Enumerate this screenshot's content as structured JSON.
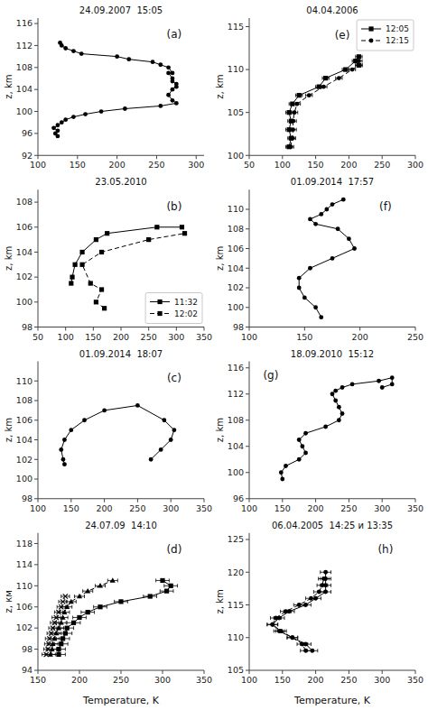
{
  "chart_data": [
    {
      "type": "line",
      "title": "24.09.2007  15:05",
      "annotation": "(a)",
      "ylabel": "z, km",
      "xlim": [
        100,
        310
      ],
      "xticks": [
        100,
        150,
        200,
        250,
        300
      ],
      "ylim": [
        92,
        117
      ],
      "yticks": [
        92,
        96,
        100,
        104,
        108,
        112,
        116
      ],
      "series": [
        {
          "x": [
            125,
            122,
            125,
            120,
            125,
            130,
            135,
            145,
            160,
            180,
            210,
            255,
            275,
            270,
            265,
            270,
            275,
            275,
            270,
            270,
            265,
            270,
            265,
            255,
            245,
            215,
            200,
            155,
            145,
            135,
            130,
            128
          ],
          "values": [
            95.5,
            96,
            96.5,
            97,
            97.5,
            98,
            98.5,
            99,
            99.5,
            100,
            100.5,
            101,
            101.5,
            102,
            103,
            104,
            104.5,
            105,
            105.5,
            106,
            107,
            107,
            108,
            108.5,
            109,
            109.5,
            110,
            110.5,
            111,
            111.5,
            112,
            112.5
          ],
          "marker": "circle",
          "line_style": "solid",
          "color": "black"
        }
      ]
    },
    {
      "type": "line",
      "title": "04.04.2006",
      "annotation": "(e)",
      "ylabel": "z, km",
      "xlim": [
        50,
        300
      ],
      "xticks": [
        50,
        100,
        150,
        200,
        250,
        300
      ],
      "ylim": [
        100,
        116
      ],
      "yticks": [
        100,
        105,
        110,
        115
      ],
      "legend": "upper right",
      "series": [
        {
          "name": "12:05",
          "x": [
            110,
            113,
            110,
            113,
            110,
            115,
            125,
            155,
            165,
            195,
            210,
            215,
            215
          ],
          "values": [
            101,
            102,
            103,
            104,
            105,
            106,
            107,
            108,
            109,
            110,
            111,
            111.5,
            110.5
          ],
          "xerr": [
            5,
            5,
            5,
            5,
            5,
            5,
            5,
            5,
            5,
            5,
            5,
            5,
            5
          ],
          "marker": "square",
          "line_style": "solid",
          "color": "black"
        },
        {
          "name": "12:15",
          "x": [
            112,
            115,
            116,
            116,
            118,
            122,
            140,
            162,
            185,
            205,
            215,
            215
          ],
          "values": [
            101,
            102,
            103,
            104,
            105,
            106,
            107,
            108,
            109,
            110,
            110.5,
            111
          ],
          "xerr": [
            5,
            5,
            5,
            5,
            5,
            5,
            5,
            5,
            5,
            5,
            5,
            5
          ],
          "marker": "circle",
          "line_style": "dashed",
          "color": "black"
        }
      ]
    },
    {
      "type": "line",
      "title": "23.05.2010",
      "annotation": "(b)",
      "ylabel": "z, km",
      "xlim": [
        50,
        350
      ],
      "xticks": [
        50,
        100,
        150,
        200,
        250,
        300,
        350
      ],
      "ylim": [
        98,
        109
      ],
      "yticks": [
        98,
        100,
        102,
        104,
        106,
        108
      ],
      "legend": "lower right",
      "series": [
        {
          "name": "11:32",
          "x": [
            110,
            112,
            117,
            130,
            155,
            175,
            265,
            310
          ],
          "values": [
            101.5,
            102,
            103,
            104,
            105,
            105.5,
            106,
            106
          ],
          "marker": "square",
          "line_style": "solid",
          "color": "black"
        },
        {
          "name": "12:02",
          "x": [
            170,
            155,
            165,
            145,
            130,
            165,
            250,
            315
          ],
          "values": [
            99.5,
            100,
            101,
            101.5,
            103,
            104,
            105,
            105.5
          ],
          "marker": "square",
          "line_style": "dashed",
          "color": "black"
        }
      ]
    },
    {
      "type": "line",
      "title": "01.09.2014  17:57",
      "annotation": "(f)",
      "ylabel": "z, km",
      "xlim": [
        100,
        250
      ],
      "xticks": [
        100,
        150,
        200,
        250
      ],
      "ylim": [
        98,
        112
      ],
      "yticks": [
        98,
        100,
        102,
        104,
        106,
        108,
        110
      ],
      "series": [
        {
          "x": [
            165,
            160,
            150,
            145,
            145,
            155,
            175,
            195,
            190,
            180,
            160,
            155,
            165,
            170,
            175,
            185
          ],
          "values": [
            99,
            100,
            101,
            102,
            103,
            104,
            105,
            106,
            107,
            108,
            108.5,
            109,
            109.5,
            110,
            110.5,
            111
          ],
          "marker": "circle",
          "line_style": "solid",
          "color": "black"
        }
      ]
    },
    {
      "type": "line",
      "title": "01.09.2014  18:07",
      "annotation": "(c)",
      "ylabel": "z, km",
      "xlim": [
        100,
        350
      ],
      "xticks": [
        100,
        150,
        200,
        250,
        300,
        350
      ],
      "ylim": [
        98,
        112
      ],
      "yticks": [
        98,
        100,
        102,
        104,
        106,
        108,
        110
      ],
      "series": [
        {
          "x": [
            140,
            138,
            135,
            140,
            150,
            170,
            200,
            250,
            290,
            305,
            300,
            285,
            270
          ],
          "values": [
            101.5,
            102,
            103,
            104,
            105,
            106,
            107,
            107.5,
            106,
            105,
            104,
            103,
            102
          ],
          "marker": "circle",
          "line_style": "solid",
          "color": "black"
        }
      ]
    },
    {
      "type": "line",
      "title": "18.09.2010  15:12",
      "annotation": "(g)",
      "ylabel": "z, km",
      "xlim": [
        100,
        350
      ],
      "xticks": [
        100,
        150,
        200,
        250,
        300,
        350
      ],
      "ylim": [
        96,
        117
      ],
      "yticks": [
        96,
        100,
        104,
        108,
        112,
        116
      ],
      "series": [
        {
          "x": [
            150,
            148,
            155,
            175,
            185,
            180,
            175,
            185,
            215,
            235,
            240,
            235,
            230,
            225,
            230,
            240,
            255,
            295,
            315,
            315,
            300
          ],
          "values": [
            99,
            100,
            101,
            102,
            103,
            104,
            105,
            106,
            107,
            108,
            109,
            110,
            111,
            112,
            112.5,
            113,
            113.5,
            114,
            114.5,
            113.5,
            113
          ],
          "marker": "circle",
          "line_style": "solid",
          "color": "black"
        }
      ]
    },
    {
      "type": "line",
      "title": "24.07.09  14:10",
      "annotation": "(d)",
      "ylabel": "z, км",
      "xlabel": "Temperature, K",
      "xlim": [
        150,
        350
      ],
      "xticks": [
        150,
        200,
        250,
        300,
        350
      ],
      "ylim": [
        94,
        120
      ],
      "yticks": [
        94,
        98,
        102,
        106,
        110,
        114,
        118
      ],
      "series": [
        {
          "x": [
            175,
            175,
            178,
            180,
            183,
            185,
            193,
            200,
            210,
            225,
            250,
            285,
            305,
            310,
            300
          ],
          "values": [
            97,
            98,
            99,
            100,
            101,
            102,
            103,
            104,
            105,
            106,
            107,
            108,
            109,
            110,
            111
          ],
          "xerr": [
            8,
            8,
            8,
            8,
            8,
            8,
            8,
            8,
            8,
            8,
            8,
            8,
            8,
            8,
            8
          ],
          "marker": "square",
          "line_style": "solid",
          "color": "black"
        },
        {
          "x": [
            165,
            167,
            168,
            170,
            172,
            175,
            178,
            180,
            182,
            185,
            190,
            200,
            210,
            225,
            240
          ],
          "values": [
            97,
            98,
            99,
            100,
            101,
            102,
            103,
            104,
            105,
            106,
            107,
            108,
            109,
            110,
            111
          ],
          "xerr": [
            6,
            6,
            6,
            6,
            6,
            6,
            6,
            6,
            6,
            6,
            6,
            6,
            6,
            6,
            6
          ],
          "marker": "triangle",
          "line_style": "dashed",
          "color": "black"
        },
        {
          "x": [
            160,
            162,
            163,
            164,
            166,
            168,
            170,
            172,
            175,
            178,
            180,
            183
          ],
          "values": [
            97,
            98,
            99,
            100,
            101,
            102,
            103,
            104,
            105,
            106,
            107,
            108
          ],
          "xerr": [
            5,
            5,
            5,
            5,
            5,
            5,
            5,
            5,
            5,
            5,
            5,
            5
          ],
          "marker": "x",
          "line_style": "dotted",
          "color": "black"
        }
      ]
    },
    {
      "type": "line",
      "title": "06.04.2005  14:25 и 13:35",
      "annotation": "(h)",
      "ylabel": "z, km",
      "xlabel": "Temperature, K",
      "xlim": [
        100,
        350
      ],
      "xticks": [
        100,
        150,
        200,
        250,
        300,
        350
      ],
      "ylim": [
        105,
        126
      ],
      "yticks": [
        105,
        110,
        115,
        120,
        125
      ],
      "series": [
        {
          "x": [
            195,
            185,
            165,
            145,
            135,
            145,
            160,
            185,
            200,
            215,
            215,
            215,
            215
          ],
          "values": [
            108,
            109,
            110,
            111,
            112,
            113,
            114,
            115,
            116,
            117,
            118,
            119,
            120
          ],
          "xerr": [
            8,
            8,
            8,
            8,
            8,
            8,
            8,
            8,
            8,
            8,
            8,
            8,
            8
          ],
          "marker": "circle",
          "line_style": "solid",
          "color": "black"
        },
        {
          "x": [
            185,
            180,
            165,
            148,
            135,
            140,
            155,
            175,
            193,
            205,
            210,
            212
          ],
          "values": [
            108,
            109,
            110,
            111,
            112,
            113,
            114,
            115,
            116,
            117,
            118,
            119
          ],
          "xerr": [
            8,
            8,
            8,
            8,
            8,
            8,
            8,
            8,
            8,
            8,
            8,
            8
          ],
          "marker": "circle",
          "line_style": "dashed",
          "color": "black"
        }
      ]
    }
  ]
}
